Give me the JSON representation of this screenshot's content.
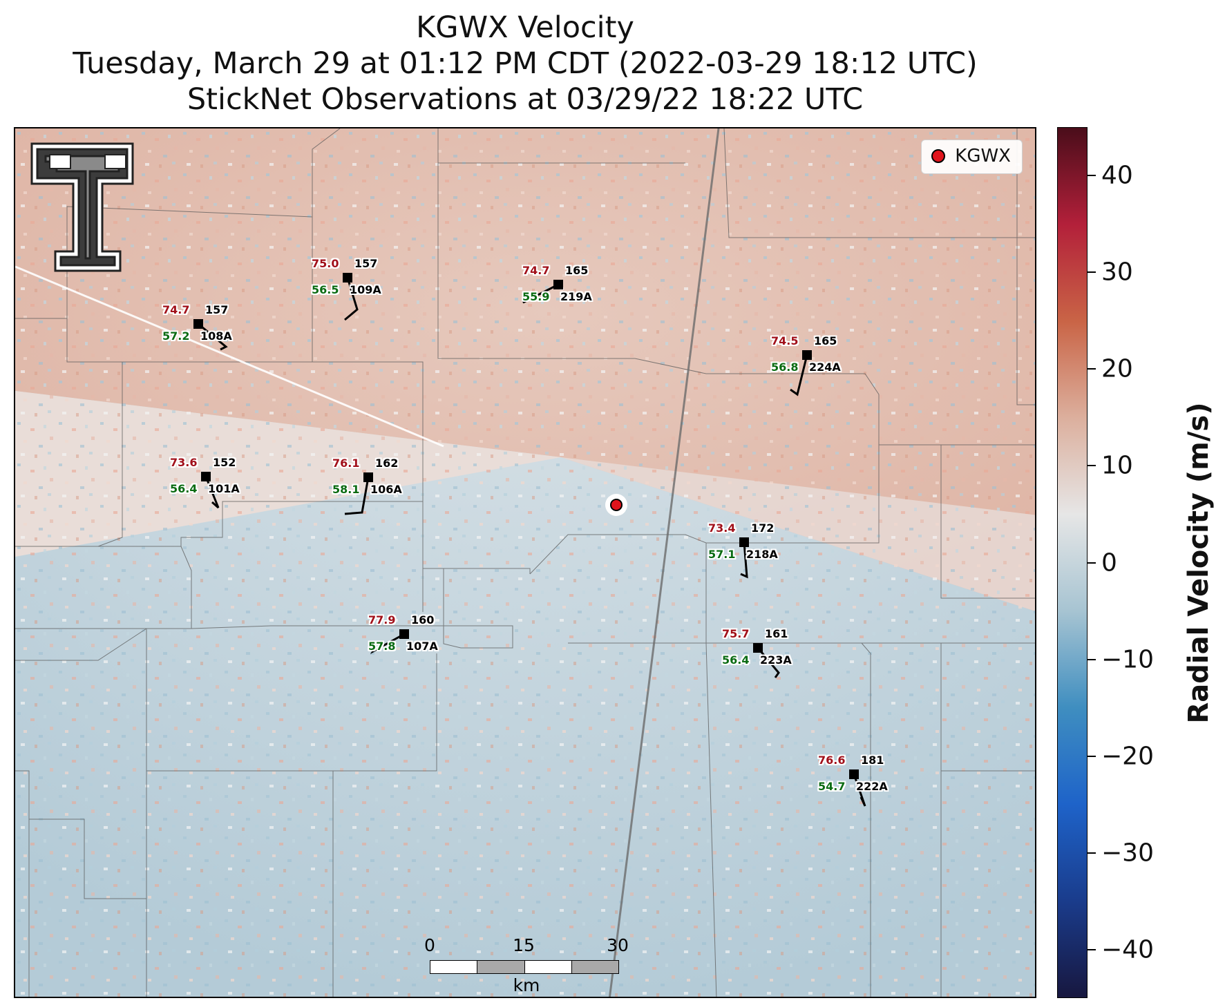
{
  "title": {
    "line1": "KGWX Velocity",
    "line2": "Tuesday, March 29 at 01:12 PM CDT (2022-03-29 18:12 UTC)",
    "line3": "StickNet Observations at 03/29/22 18:22 UTC"
  },
  "legend": {
    "label": "KGWX",
    "marker_color": "#e0141c"
  },
  "scalebar": {
    "labels": [
      "0",
      "15",
      "30"
    ],
    "units": "km"
  },
  "colorbar": {
    "label": "Radial Velocity (m/s)",
    "ticks": [
      "40",
      "30",
      "20",
      "10",
      "0",
      "−10",
      "−20",
      "−30",
      "−40"
    ],
    "range": [
      -45,
      45
    ],
    "colors": [
      "#17173f",
      "#1a3c8c",
      "#1e63c9",
      "#3f8ec0",
      "#a7c4d2",
      "#e6e6e6",
      "#dcaf9d",
      "#c96446",
      "#b3203a",
      "#4a0d1a"
    ]
  },
  "stations": [
    {
      "id": "109A",
      "temp": "75.0",
      "dew": "56.5",
      "pres": "157"
    },
    {
      "id": "219A",
      "temp": "74.7",
      "dew": "55.9",
      "pres": "165"
    },
    {
      "id": "108A",
      "temp": "74.7",
      "dew": "57.2",
      "pres": "157"
    },
    {
      "id": "224A",
      "temp": "74.5",
      "dew": "56.8",
      "pres": "165"
    },
    {
      "id": "101A",
      "temp": "73.6",
      "dew": "56.4",
      "pres": "152"
    },
    {
      "id": "106A",
      "temp": "76.1",
      "dew": "58.1",
      "pres": "162"
    },
    {
      "id": "218A",
      "temp": "73.4",
      "dew": "57.1",
      "pres": "172"
    },
    {
      "id": "107A",
      "temp": "77.9",
      "dew": "57.8",
      "pres": "160"
    },
    {
      "id": "223A",
      "temp": "75.7",
      "dew": "56.4",
      "pres": "161"
    },
    {
      "id": "222A",
      "temp": "76.6",
      "dew": "54.7",
      "pres": "181"
    }
  ]
}
